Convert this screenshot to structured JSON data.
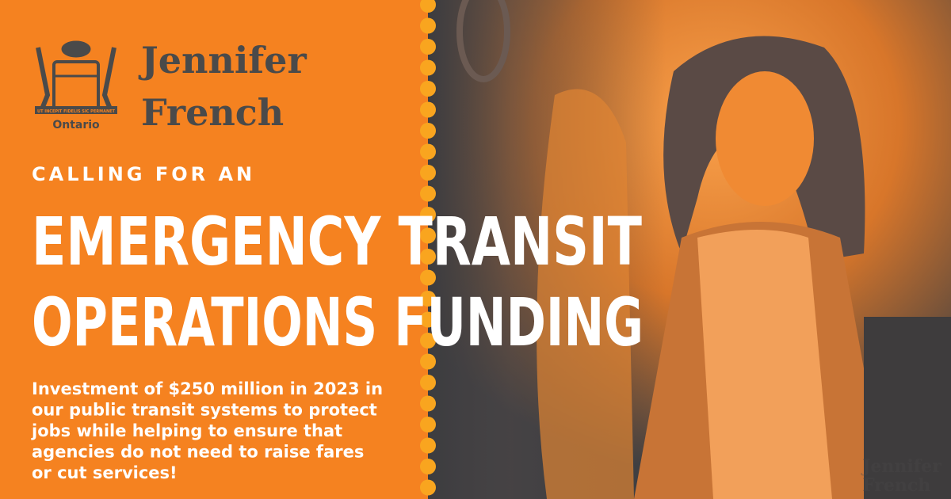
{
  "logo": {
    "name_lines": [
      "Jennifer",
      "French"
    ],
    "province": "Ontario",
    "motto": "UT INCEPIT FIDELIS SIC PERMANET"
  },
  "kicker": "CALLING FOR AN",
  "headline": [
    "EMERGENCY TRANSIT",
    "OPERATIONS FUNDING"
  ],
  "body": [
    "Investment of $250 million in 2023 in",
    "our public transit systems to protect",
    "jobs while helping to ensure that",
    "agencies do not need to raise fares",
    "or cut services!"
  ],
  "watermark": [
    "Jennifer",
    "French"
  ]
}
